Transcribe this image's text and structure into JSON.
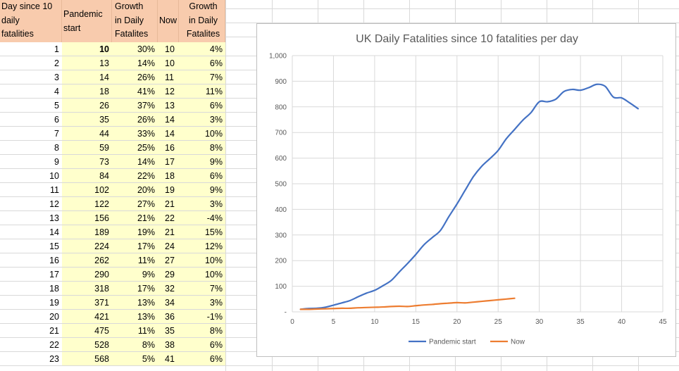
{
  "headers": {
    "col_a": "Day since 10\ndaily\nfatalities",
    "col_b": "Pandemic\nstart",
    "col_c": "Growth\nin Daily\nFatalites",
    "col_d": "Now",
    "col_e": "Growth\nin Daily\nFatalites"
  },
  "rows": [
    {
      "day": "1",
      "pandemic": "10",
      "growth1": "30%",
      "now": "10",
      "growth2": "4%"
    },
    {
      "day": "2",
      "pandemic": "13",
      "growth1": "14%",
      "now": "10",
      "growth2": "6%"
    },
    {
      "day": "3",
      "pandemic": "14",
      "growth1": "26%",
      "now": "11",
      "growth2": "7%"
    },
    {
      "day": "4",
      "pandemic": "18",
      "growth1": "41%",
      "now": "12",
      "growth2": "11%"
    },
    {
      "day": "5",
      "pandemic": "26",
      "growth1": "37%",
      "now": "13",
      "growth2": "6%"
    },
    {
      "day": "6",
      "pandemic": "35",
      "growth1": "26%",
      "now": "14",
      "growth2": "3%"
    },
    {
      "day": "7",
      "pandemic": "44",
      "growth1": "33%",
      "now": "14",
      "growth2": "10%"
    },
    {
      "day": "8",
      "pandemic": "59",
      "growth1": "25%",
      "now": "16",
      "growth2": "8%"
    },
    {
      "day": "9",
      "pandemic": "73",
      "growth1": "14%",
      "now": "17",
      "growth2": "9%"
    },
    {
      "day": "10",
      "pandemic": "84",
      "growth1": "22%",
      "now": "18",
      "growth2": "6%"
    },
    {
      "day": "11",
      "pandemic": "102",
      "growth1": "20%",
      "now": "19",
      "growth2": "9%"
    },
    {
      "day": "12",
      "pandemic": "122",
      "growth1": "27%",
      "now": "21",
      "growth2": "3%"
    },
    {
      "day": "13",
      "pandemic": "156",
      "growth1": "21%",
      "now": "22",
      "growth2": "-4%"
    },
    {
      "day": "14",
      "pandemic": "189",
      "growth1": "19%",
      "now": "21",
      "growth2": "15%"
    },
    {
      "day": "15",
      "pandemic": "224",
      "growth1": "17%",
      "now": "24",
      "growth2": "12%"
    },
    {
      "day": "16",
      "pandemic": "262",
      "growth1": "11%",
      "now": "27",
      "growth2": "10%"
    },
    {
      "day": "17",
      "pandemic": "290",
      "growth1": "9%",
      "now": "29",
      "growth2": "10%"
    },
    {
      "day": "18",
      "pandemic": "318",
      "growth1": "17%",
      "now": "32",
      "growth2": "7%"
    },
    {
      "day": "19",
      "pandemic": "371",
      "growth1": "13%",
      "now": "34",
      "growth2": "3%"
    },
    {
      "day": "20",
      "pandemic": "421",
      "growth1": "13%",
      "now": "36",
      "growth2": "-1%"
    },
    {
      "day": "21",
      "pandemic": "475",
      "growth1": "11%",
      "now": "35",
      "growth2": "8%"
    },
    {
      "day": "22",
      "pandemic": "528",
      "growth1": "8%",
      "now": "38",
      "growth2": "6%"
    },
    {
      "day": "23",
      "pandemic": "568",
      "growth1": "5%",
      "now": "41",
      "growth2": "6%"
    }
  ],
  "colors": {
    "header_bg": "#f8cbad",
    "data_bg": "#ffffcc",
    "series_pandemic": "#4472c4",
    "series_now": "#ed7d31"
  },
  "chart_data": {
    "type": "line",
    "title": "UK Daily Fatalities since 10 fatalities per day",
    "xlabel": "",
    "ylabel": "",
    "xlim": [
      0,
      45
    ],
    "ylim": [
      0,
      1000
    ],
    "x_ticks": [
      "0",
      "5",
      "10",
      "15",
      "20",
      "25",
      "30",
      "35",
      "40",
      "45"
    ],
    "y_ticks": [
      "-",
      "100",
      "200",
      "300",
      "400",
      "500",
      "600",
      "700",
      "800",
      "900",
      "1,000"
    ],
    "grid": true,
    "legend_position": "bottom",
    "series": [
      {
        "name": "Pandemic start",
        "x": [
          1,
          2,
          3,
          4,
          5,
          6,
          7,
          8,
          9,
          10,
          11,
          12,
          13,
          14,
          15,
          16,
          17,
          18,
          19,
          20,
          21,
          22,
          23,
          24,
          25,
          26,
          27,
          28,
          29,
          30,
          31,
          32,
          33,
          34,
          35,
          36,
          37,
          38,
          39,
          40,
          41,
          42
        ],
        "values": [
          10,
          13,
          14,
          18,
          26,
          35,
          44,
          59,
          73,
          84,
          102,
          122,
          156,
          189,
          224,
          262,
          290,
          318,
          371,
          421,
          475,
          528,
          568,
          598,
          630,
          676,
          712,
          748,
          778,
          820,
          820,
          830,
          860,
          868,
          865,
          875,
          888,
          880,
          838,
          835,
          815,
          793
        ]
      },
      {
        "name": "Now",
        "x": [
          1,
          2,
          3,
          4,
          5,
          6,
          7,
          8,
          9,
          10,
          11,
          12,
          13,
          14,
          15,
          16,
          17,
          18,
          19,
          20,
          21,
          22,
          23,
          24,
          25,
          26,
          27
        ],
        "values": [
          10,
          10,
          11,
          12,
          13,
          14,
          14,
          16,
          17,
          18,
          19,
          21,
          22,
          21,
          24,
          27,
          29,
          32,
          34,
          36,
          35,
          38,
          41,
          44,
          47,
          50,
          53
        ]
      }
    ]
  }
}
